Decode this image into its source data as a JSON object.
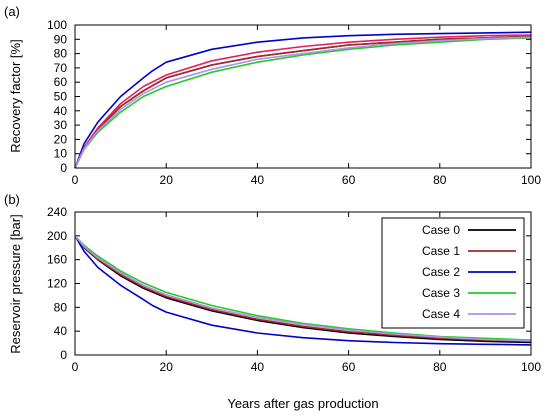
{
  "chart_data": [
    {
      "type": "line",
      "panel_label": "(a)",
      "ylabel": "Recovery factor [%]",
      "xlim": [
        0,
        100
      ],
      "ylim": [
        0,
        100
      ],
      "xticks": [
        "0",
        "20",
        "40",
        "60",
        "80",
        "100"
      ],
      "yticks": [
        "0",
        "10",
        "20",
        "30",
        "40",
        "50",
        "60",
        "70",
        "80",
        "90",
        "100"
      ],
      "grid": false,
      "series": [
        {
          "color": "#000000",
          "x": [
            0,
            2,
            5,
            10,
            15,
            20,
            30,
            40,
            50,
            60,
            70,
            80,
            90,
            100
          ],
          "y": [
            0,
            14,
            27,
            43,
            54,
            63,
            72,
            78,
            82,
            86,
            88,
            90,
            91,
            92
          ]
        },
        {
          "color": "#a52a2a",
          "x": [
            0,
            2,
            5,
            10,
            15,
            20,
            30,
            40,
            50,
            60,
            70,
            80,
            90,
            100
          ],
          "y": [
            0,
            14,
            27,
            43,
            54,
            63,
            72,
            78,
            82,
            86,
            88,
            90,
            91,
            92
          ]
        },
        {
          "color": "#0000cc",
          "x": [
            0,
            2,
            5,
            10,
            15,
            17,
            20,
            30,
            40,
            50,
            60,
            70,
            80,
            90,
            100
          ],
          "y": [
            0,
            17,
            32,
            50,
            63,
            68,
            74,
            83,
            88,
            91,
            92.5,
            93.5,
            94,
            94.5,
            95
          ]
        },
        {
          "color": "#22cc22",
          "x": [
            0,
            2,
            5,
            10,
            15,
            20,
            30,
            40,
            50,
            60,
            70,
            80,
            90,
            100
          ],
          "y": [
            0,
            13,
            25,
            39,
            50,
            57,
            67,
            74,
            79,
            83,
            86,
            88,
            90,
            91
          ]
        },
        {
          "color": "#e8205a",
          "x": [
            0,
            2,
            5,
            10,
            15,
            20,
            30,
            40,
            50,
            60,
            70,
            80,
            90,
            100
          ],
          "y": [
            0,
            14.5,
            28,
            45,
            57,
            65,
            75,
            81,
            85,
            88,
            90,
            91.5,
            92.5,
            93
          ]
        },
        {
          "color": "#b090f0",
          "x": [
            0,
            2,
            5,
            10,
            15,
            20,
            30,
            40,
            50,
            60,
            70,
            80,
            90,
            100
          ],
          "y": [
            0,
            13.5,
            26,
            41,
            52,
            60,
            69,
            76,
            80,
            84,
            87,
            89,
            90.5,
            91.5
          ]
        }
      ]
    },
    {
      "type": "line",
      "panel_label": "(b)",
      "ylabel": "Reservoir pressure [bar]",
      "xlabel": "Years after gas production",
      "xlim": [
        0,
        100
      ],
      "ylim": [
        0,
        240
      ],
      "xticks": [
        "0",
        "20",
        "40",
        "60",
        "80",
        "100"
      ],
      "yticks": [
        "0",
        "40",
        "80",
        "120",
        "160",
        "200",
        "240"
      ],
      "grid": false,
      "legend_position": "top-right",
      "series": [
        {
          "name": "Case 0",
          "color": "#000000",
          "x": [
            0,
            2,
            5,
            10,
            15,
            20,
            30,
            40,
            50,
            60,
            70,
            80,
            90,
            100
          ],
          "y": [
            200,
            180,
            160,
            133,
            112,
            96,
            74,
            58,
            46,
            37,
            31,
            26,
            23,
            21
          ]
        },
        {
          "name": "Case 1",
          "color": "#a52a2a",
          "x": [
            0,
            2,
            5,
            10,
            15,
            20,
            30,
            40,
            50,
            60,
            70,
            80,
            90,
            100
          ],
          "y": [
            200,
            181,
            161,
            135,
            114,
            98,
            76,
            60,
            48,
            39,
            33,
            28,
            25,
            23
          ]
        },
        {
          "name": "Case 2",
          "color": "#0000cc",
          "x": [
            0,
            2,
            5,
            10,
            15,
            17,
            20,
            30,
            40,
            50,
            60,
            70,
            80,
            90,
            100
          ],
          "y": [
            200,
            174,
            147,
            117,
            93,
            83,
            72,
            50,
            37,
            29,
            24,
            21,
            19,
            18,
            17
          ]
        },
        {
          "name": "Case 3",
          "color": "#22cc22",
          "x": [
            0,
            2,
            5,
            10,
            15,
            20,
            30,
            40,
            50,
            60,
            70,
            80,
            90,
            100
          ],
          "y": [
            200,
            184,
            166,
            141,
            121,
            105,
            83,
            66,
            53,
            44,
            37,
            31,
            28,
            25
          ]
        },
        {
          "name": "Case 4",
          "color": "#b090f0",
          "x": [
            0,
            2,
            5,
            10,
            15,
            20,
            30,
            40,
            50,
            60,
            70,
            80,
            90,
            100
          ],
          "y": [
            200,
            182,
            163,
            138,
            117,
            101,
            79,
            63,
            51,
            42,
            35,
            30,
            26,
            24
          ]
        }
      ]
    }
  ]
}
